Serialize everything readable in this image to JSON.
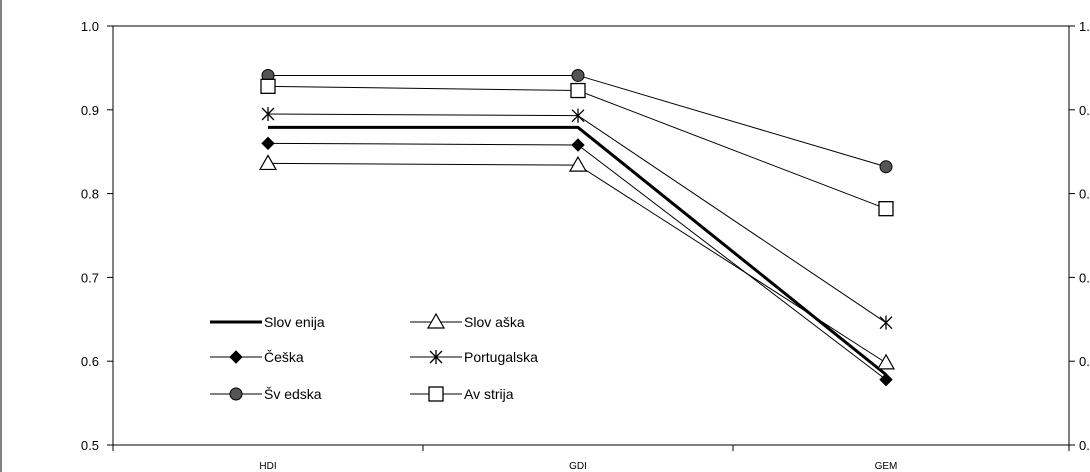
{
  "chart_data": {
    "type": "line",
    "title": "",
    "xlabel": "",
    "ylabel": "",
    "categories": [
      "HDI",
      "GDI",
      "GEM"
    ],
    "ylim": [
      0.5,
      1.0
    ],
    "yticks": [
      0.5,
      0.6,
      0.7,
      0.8,
      0.9,
      1.0
    ],
    "ytick_labels": [
      "0.5",
      "0.6",
      "0.7",
      "0.8",
      "0.9",
      "1.0"
    ],
    "secondary_y_axis": true,
    "grid": false,
    "legend_position": "lower-left inside plot",
    "series": [
      {
        "name": "Slov enija",
        "values": [
          0.879,
          0.879,
          0.584
        ],
        "marker": "none",
        "line": "thick"
      },
      {
        "name": "Slov aška",
        "values": [
          0.836,
          0.834,
          0.598
        ],
        "marker": "triangle",
        "line": "thin"
      },
      {
        "name": "Češka",
        "values": [
          0.86,
          0.858,
          0.578
        ],
        "marker": "diamond",
        "line": "thin"
      },
      {
        "name": "Portugalska",
        "values": [
          0.895,
          0.893,
          0.646
        ],
        "marker": "star",
        "line": "thin"
      },
      {
        "name": "Šv edska",
        "values": [
          0.941,
          0.941,
          0.832
        ],
        "marker": "circle",
        "line": "thin"
      },
      {
        "name": "Av strija",
        "values": [
          0.928,
          0.923,
          0.782
        ],
        "marker": "square",
        "line": "thin"
      }
    ],
    "colors": {
      "line": "#000000",
      "circle_fill": "#555555",
      "square_fill": "#ffffff",
      "triangle_fill": "#ffffff",
      "diamond_fill": "#000000"
    }
  }
}
